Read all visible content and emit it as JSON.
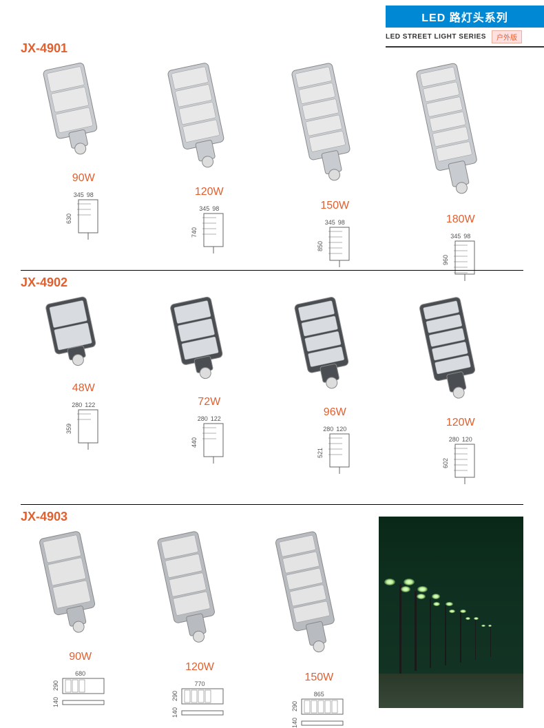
{
  "header": {
    "title_cn": "LED 路灯头系列",
    "title_en": "LED STREET LIGHT SERIES",
    "badge": "户外版"
  },
  "sections": [
    {
      "model": "JX-4901",
      "lamp_color": "#c8ccd0",
      "module_color": "#e8e8e8",
      "items": [
        {
          "watt": "90W",
          "modules": 3,
          "dim_w": "345",
          "dim_w2": "98",
          "dim_h": "630",
          "lamp_h": 130
        },
        {
          "watt": "120W",
          "modules": 4,
          "dim_w": "345",
          "dim_w2": "98",
          "dim_h": "740",
          "lamp_h": 150
        },
        {
          "watt": "150W",
          "modules": 5,
          "dim_w": "345",
          "dim_w2": "98",
          "dim_h": "850",
          "lamp_h": 170
        },
        {
          "watt": "180W",
          "modules": 6,
          "dim_w": "345",
          "dim_w2": "98",
          "dim_h": "960",
          "lamp_h": 190
        }
      ]
    },
    {
      "model": "JX-4902",
      "lamp_color": "#4a4e52",
      "module_color": "#d8dce0",
      "items": [
        {
          "watt": "48W",
          "modules": 2,
          "dim_w": "280",
          "dim_w2": "122",
          "dim_h": "359",
          "lamp_h": 95
        },
        {
          "watt": "72W",
          "modules": 3,
          "dim_w": "280",
          "dim_w2": "122",
          "dim_h": "440",
          "lamp_h": 115
        },
        {
          "watt": "96W",
          "modules": 4,
          "dim_w": "280",
          "dim_w2": "120",
          "dim_h": "521",
          "lamp_h": 130
        },
        {
          "watt": "120W",
          "modules": 5,
          "dim_w": "280",
          "dim_w2": "120",
          "dim_h": "602",
          "lamp_h": 145
        }
      ]
    },
    {
      "model": "JX-4903",
      "lamp_color": "#b8bcc0",
      "module_color": "#e4e4e4",
      "items": [
        {
          "watt": "90W",
          "modules": 3,
          "dim_w": "680",
          "dim_h": "290",
          "dim_h2": "140",
          "lamp_h": 145
        },
        {
          "watt": "120W",
          "modules": 4,
          "dim_w": "770",
          "dim_h": "290",
          "dim_h2": "140",
          "lamp_h": 160
        },
        {
          "watt": "150W",
          "modules": 5,
          "dim_w": "865",
          "dim_h": "290",
          "dim_h2": "140",
          "lamp_h": 175
        }
      ]
    }
  ]
}
